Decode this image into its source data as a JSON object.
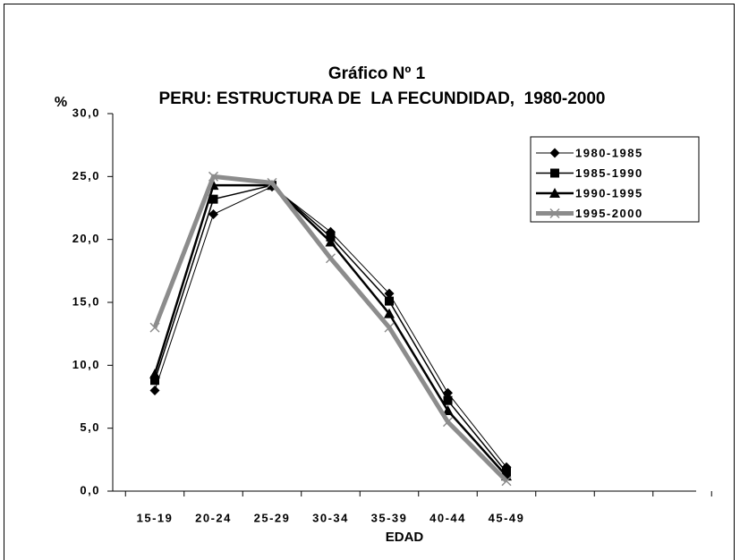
{
  "chart_data": {
    "type": "line",
    "title": "Gráfico Nº 1",
    "subtitle": "PERU: ESTRUCTURA DE  LA FECUNDIDAD,  1980-2000",
    "y_label": "%",
    "x_label": "EDAD",
    "categories": [
      "15-19",
      "20-24",
      "25-29",
      "30-34",
      "35-39",
      "40-44",
      "45-49"
    ],
    "series": [
      {
        "name": "1980-1985",
        "color": "#000000",
        "marker": "diamond",
        "values": [
          8.0,
          22.0,
          24.2,
          20.6,
          15.7,
          7.8,
          1.9
        ]
      },
      {
        "name": "1985-1990",
        "color": "#000000",
        "marker": "square",
        "values": [
          8.8,
          23.2,
          24.3,
          20.2,
          15.1,
          7.2,
          1.5
        ]
      },
      {
        "name": "1990-1995",
        "color": "#000000",
        "marker": "triangle",
        "values": [
          9.3,
          24.3,
          24.3,
          19.8,
          14.1,
          6.4,
          1.2
        ]
      },
      {
        "name": "1995-2000",
        "color": "#8c8c8c",
        "marker": "x",
        "values": [
          13.0,
          25.0,
          24.5,
          18.5,
          13.0,
          5.5,
          0.8
        ]
      }
    ],
    "ylim": [
      0,
      30
    ],
    "yticks": [
      {
        "value": 0,
        "label": "0,0"
      },
      {
        "value": 5,
        "label": "5,0"
      },
      {
        "value": 10,
        "label": "10,0"
      },
      {
        "value": 15,
        "label": "15,0"
      },
      {
        "value": 20,
        "label": "20,0"
      },
      {
        "value": 25,
        "label": "25,0"
      },
      {
        "value": 30,
        "label": "30,0"
      }
    ],
    "legend": "top-right",
    "grid": false
  }
}
